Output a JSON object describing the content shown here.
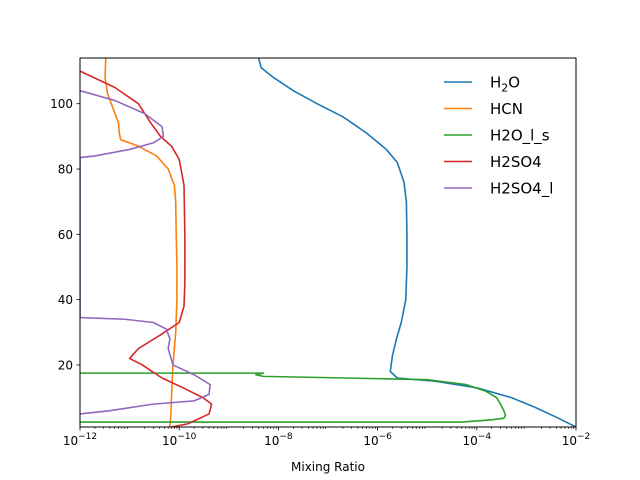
{
  "chart_data": {
    "type": "line",
    "xlabel": "Mixing Ratio",
    "ylabel": "",
    "xscale": "log",
    "xlim": [
      1e-12,
      0.01
    ],
    "ylim": [
      1,
      114
    ],
    "xticks": [
      {
        "base": "10",
        "exp": "−12"
      },
      {
        "base": "10",
        "exp": "−10"
      },
      {
        "base": "10",
        "exp": "−8"
      },
      {
        "base": "10",
        "exp": "−6"
      },
      {
        "base": "10",
        "exp": "−4"
      },
      {
        "base": "10",
        "exp": "−2"
      }
    ],
    "yticks": [
      "20",
      "40",
      "60",
      "80",
      "100"
    ],
    "legend_position": "upper right",
    "series": [
      {
        "name": "H2O",
        "legend_main": "H",
        "legend_sub": "2",
        "legend_tail": "O",
        "color": "#1f77b4",
        "points": [
          [
            4e-09,
            114
          ],
          [
            4.5e-09,
            111
          ],
          [
            8e-09,
            108
          ],
          [
            2e-08,
            104
          ],
          [
            6e-08,
            100
          ],
          [
            2e-07,
            96
          ],
          [
            6e-07,
            91
          ],
          [
            1.5e-06,
            86
          ],
          [
            2.5e-06,
            82
          ],
          [
            3.4e-06,
            76
          ],
          [
            3.8e-06,
            70
          ],
          [
            3.9e-06,
            60
          ],
          [
            3.9e-06,
            50
          ],
          [
            3.7e-06,
            40
          ],
          [
            3e-06,
            33
          ],
          [
            2.4e-06,
            28
          ],
          [
            2e-06,
            23
          ],
          [
            1.8e-06,
            18
          ],
          [
            2.5e-06,
            16
          ],
          [
            1.5e-05,
            15
          ],
          [
            0.0001,
            13
          ],
          [
            0.0005,
            10
          ],
          [
            0.0015,
            7
          ],
          [
            0.004,
            4
          ],
          [
            0.01,
            1
          ]
        ]
      },
      {
        "name": "HCN",
        "legend_main": "HCN",
        "color": "#ff7f0e",
        "points": [
          [
            3.3e-12,
            114
          ],
          [
            3.2e-12,
            108
          ],
          [
            3.6e-12,
            103
          ],
          [
            4.8e-12,
            98
          ],
          [
            6e-12,
            94
          ],
          [
            6.2e-12,
            91
          ],
          [
            6.6e-12,
            89
          ],
          [
            1.5e-11,
            87
          ],
          [
            3.5e-11,
            84
          ],
          [
            6e-11,
            80
          ],
          [
            8e-11,
            75
          ],
          [
            8.5e-11,
            70
          ],
          [
            8.7e-11,
            60
          ],
          [
            9e-11,
            50
          ],
          [
            9e-11,
            40
          ],
          [
            8.5e-11,
            30
          ],
          [
            8e-11,
            25
          ],
          [
            7.5e-11,
            20
          ],
          [
            7.2e-11,
            15
          ],
          [
            7e-11,
            10
          ],
          [
            6.8e-11,
            5
          ],
          [
            6.5e-11,
            1
          ]
        ]
      },
      {
        "name": "H2O_l_s",
        "legend_main": "H2O_l_s",
        "color": "#2ca02c",
        "points": [
          [
            1e-12,
            17.5
          ],
          [
            5e-09,
            17.5
          ],
          [
            3.5e-09,
            17
          ],
          [
            5e-09,
            16.5
          ],
          [
            1e-05,
            15.5
          ],
          [
            6e-05,
            14
          ],
          [
            0.00015,
            12
          ],
          [
            0.00025,
            10
          ],
          [
            0.0003,
            8
          ],
          [
            0.00035,
            6
          ],
          [
            0.00038,
            4.5
          ],
          [
            0.00035,
            3.7
          ],
          [
            0.0002,
            3.2
          ],
          [
            5e-05,
            2.5
          ],
          [
            1e-12,
            2.5
          ]
        ]
      },
      {
        "name": "H2SO4",
        "legend_main": "H2SO4",
        "color": "#d62728",
        "points": [
          [
            1e-12,
            110
          ],
          [
            5e-12,
            105
          ],
          [
            1.5e-11,
            100
          ],
          [
            2.7e-11,
            94
          ],
          [
            4.2e-11,
            90
          ],
          [
            7e-11,
            87
          ],
          [
            1e-10,
            83
          ],
          [
            1.25e-10,
            75
          ],
          [
            1.3e-10,
            60
          ],
          [
            1.3e-10,
            45
          ],
          [
            1.25e-10,
            38
          ],
          [
            1e-10,
            33
          ],
          [
            4e-11,
            29
          ],
          [
            1.5e-11,
            25
          ],
          [
            1e-11,
            22
          ],
          [
            1.8e-11,
            20
          ],
          [
            4.5e-11,
            16
          ],
          [
            1.2e-10,
            13
          ],
          [
            3e-10,
            10
          ],
          [
            4.5e-10,
            8
          ],
          [
            4e-10,
            5
          ],
          [
            1.5e-10,
            2
          ],
          [
            7e-11,
            1
          ]
        ]
      },
      {
        "name": "H2SO4_l",
        "legend_main": "H2SO4_l",
        "color": "#9467bd",
        "points": [
          [
            1e-12,
            104
          ],
          [
            5e-12,
            101
          ],
          [
            2e-11,
            97
          ],
          [
            4.5e-11,
            93
          ],
          [
            4.8e-11,
            90
          ],
          [
            3e-11,
            88
          ],
          [
            1e-11,
            86
          ],
          [
            2e-12,
            84
          ],
          [
            1e-12,
            83.5
          ],
          [
            1e-12,
            34.5
          ],
          [
            8e-12,
            34
          ],
          [
            3e-11,
            33
          ],
          [
            5.5e-11,
            31
          ],
          [
            6.5e-11,
            28
          ],
          [
            6e-11,
            25
          ],
          [
            7.5e-11,
            20
          ],
          [
            2e-10,
            17
          ],
          [
            4.2e-10,
            14
          ],
          [
            4e-10,
            11
          ],
          [
            2e-10,
            9
          ],
          [
            3e-11,
            8
          ],
          [
            4e-12,
            6
          ],
          [
            1e-12,
            5
          ]
        ]
      }
    ]
  }
}
